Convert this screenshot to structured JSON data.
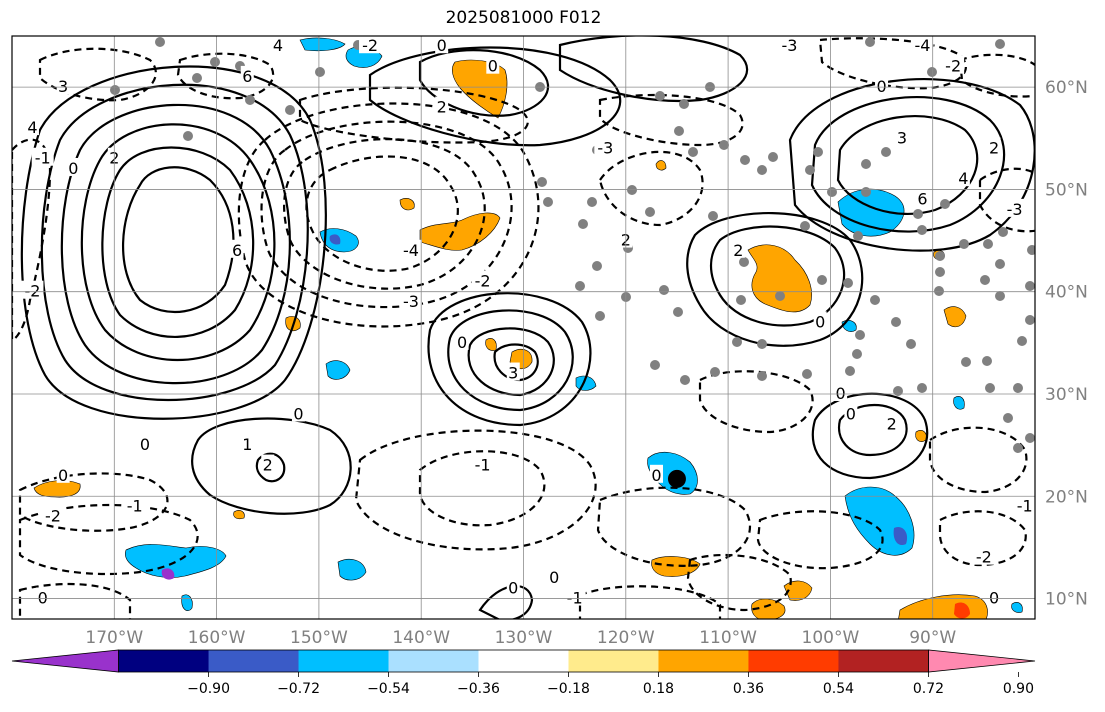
{
  "title": "2025081000 F012",
  "map": {
    "lon_range": [
      -180,
      -80
    ],
    "lat_range": [
      8,
      65
    ],
    "lat_ticks": [
      {
        "label": "60°N",
        "lat": 60
      },
      {
        "label": "50°N",
        "lat": 50
      },
      {
        "label": "40°N",
        "lat": 40
      },
      {
        "label": "30°N",
        "lat": 30
      },
      {
        "label": "20°N",
        "lat": 20
      },
      {
        "label": "10°N",
        "lat": 10
      }
    ],
    "lon_ticks": [
      {
        "label": "170°W",
        "lon": -170
      },
      {
        "label": "160°W",
        "lon": -160
      },
      {
        "label": "150°W",
        "lon": -150
      },
      {
        "label": "140°W",
        "lon": -140
      },
      {
        "label": "130°W",
        "lon": -130
      },
      {
        "label": "120°W",
        "lon": -120
      },
      {
        "label": "110°W",
        "lon": -110
      },
      {
        "label": "100°W",
        "lon": -100
      },
      {
        "label": "90°W",
        "lon": -90
      }
    ],
    "grid": true,
    "contour_labels": [
      {
        "text": "6",
        "lon": -158,
        "lat": 44
      },
      {
        "text": "4",
        "lon": -154,
        "lat": 64
      },
      {
        "text": "6",
        "lon": -157,
        "lat": 61
      },
      {
        "text": "3",
        "lon": -175,
        "lat": 60
      },
      {
        "text": "4",
        "lon": -178,
        "lat": 56
      },
      {
        "text": "2",
        "lon": -170,
        "lat": 53
      },
      {
        "text": "0",
        "lon": -174,
        "lat": 52
      },
      {
        "text": "-1",
        "lon": -177,
        "lat": 53
      },
      {
        "text": "-2",
        "lon": -178,
        "lat": 40
      },
      {
        "text": "-4",
        "lon": -141,
        "lat": 44
      },
      {
        "text": "-3",
        "lon": -141,
        "lat": 39
      },
      {
        "text": "2",
        "lon": -120,
        "lat": 45
      },
      {
        "text": "3",
        "lon": -131,
        "lat": 32
      },
      {
        "text": "0",
        "lon": -136,
        "lat": 35
      },
      {
        "text": "-2",
        "lon": -134,
        "lat": 41
      },
      {
        "text": "0",
        "lon": -152,
        "lat": 28
      },
      {
        "text": "1",
        "lon": -157,
        "lat": 25
      },
      {
        "text": "2",
        "lon": -155,
        "lat": 23
      },
      {
        "text": "-1",
        "lon": -134,
        "lat": 23
      },
      {
        "text": "0",
        "lon": -167,
        "lat": 25
      },
      {
        "text": "0",
        "lon": -175,
        "lat": 22
      },
      {
        "text": "-1",
        "lon": -168,
        "lat": 19
      },
      {
        "text": "-2",
        "lon": -176,
        "lat": 18
      },
      {
        "text": "0",
        "lon": -177,
        "lat": 10
      },
      {
        "text": "-1",
        "lon": -125,
        "lat": 10
      },
      {
        "text": "0",
        "lon": -127,
        "lat": 12
      },
      {
        "text": "0",
        "lon": -131,
        "lat": 11
      },
      {
        "text": "0",
        "lon": -117,
        "lat": 22
      },
      {
        "text": "-2",
        "lon": -145,
        "lat": 64
      },
      {
        "text": "0",
        "lon": -138,
        "lat": 64
      },
      {
        "text": "0",
        "lon": -133,
        "lat": 62
      },
      {
        "text": "2",
        "lon": -138,
        "lat": 58
      },
      {
        "text": "-3",
        "lon": -122,
        "lat": 54
      },
      {
        "text": "2",
        "lon": -109,
        "lat": 44
      },
      {
        "text": "0",
        "lon": -101,
        "lat": 37
      },
      {
        "text": "3",
        "lon": -93,
        "lat": 55
      },
      {
        "text": "6",
        "lon": -91,
        "lat": 49
      },
      {
        "text": "4",
        "lon": -87,
        "lat": 51
      },
      {
        "text": "2",
        "lon": -84,
        "lat": 54
      },
      {
        "text": "0",
        "lon": -95,
        "lat": 60
      },
      {
        "text": "-3",
        "lon": -82,
        "lat": 48
      },
      {
        "text": "-2",
        "lon": -88,
        "lat": 62
      },
      {
        "text": "-4",
        "lon": -91,
        "lat": 64
      },
      {
        "text": "2",
        "lon": -94,
        "lat": 27
      },
      {
        "text": "0",
        "lon": -98,
        "lat": 28
      },
      {
        "text": "0",
        "lon": -99,
        "lat": 30
      },
      {
        "text": "-2",
        "lon": -85,
        "lat": 14
      },
      {
        "text": "-1",
        "lon": -81,
        "lat": 19
      },
      {
        "text": "0",
        "lon": -84,
        "lat": 10
      },
      {
        "text": "-3",
        "lon": -104,
        "lat": 64
      }
    ],
    "station_marker": {
      "lon": -115,
      "lat": 21.7
    }
  },
  "colorbar": {
    "colors": [
      "#9932cc",
      "#000080",
      "#3a5bc7",
      "#00bfff",
      "#aae0ff",
      "#ffffff",
      "#ffeb8c",
      "#ffa500",
      "#ff3c00",
      "#b22222",
      "#ff89b0"
    ],
    "tick_labels": [
      "−0.90",
      "−0.72",
      "−0.54",
      "−0.36",
      "−0.18",
      "0.18",
      "0.36",
      "0.54",
      "0.72",
      "0.90"
    ],
    "extend": "both"
  }
}
